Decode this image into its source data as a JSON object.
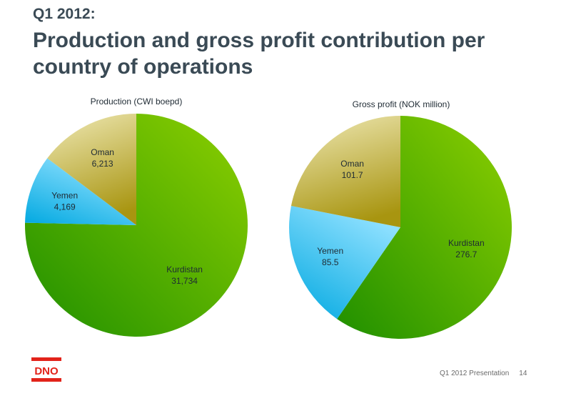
{
  "header": {
    "kicker": "Q1 2012:",
    "title": "Production and gross profit contribution per country of operations"
  },
  "chart_data": [
    {
      "type": "pie",
      "title": "Production (CWI boepd)",
      "slices": [
        {
          "label": "Kurdistan",
          "value": 31734,
          "value_label": "31,734",
          "color": "#33a000"
        },
        {
          "label": "Yemen",
          "value": 4169,
          "value_label": "4,169",
          "color": "#00aee8"
        },
        {
          "label": "Oman",
          "value": 6213,
          "value_label": "6,213",
          "color": "#a89518"
        }
      ]
    },
    {
      "type": "pie",
      "title": "Gross profit (NOK million)",
      "slices": [
        {
          "label": "Kurdistan",
          "value": 276.7,
          "value_label": "276.7",
          "color": "#33a000"
        },
        {
          "label": "Yemen",
          "value": 85.5,
          "value_label": "85.5",
          "color": "#00aee8"
        },
        {
          "label": "Oman",
          "value": 101.7,
          "value_label": "101.7",
          "color": "#a89518"
        }
      ]
    }
  ],
  "footer": {
    "presentation": "Q1 2012 Presentation",
    "page": "14"
  },
  "logo": {
    "text": "DNO",
    "color": "#e2231a"
  }
}
